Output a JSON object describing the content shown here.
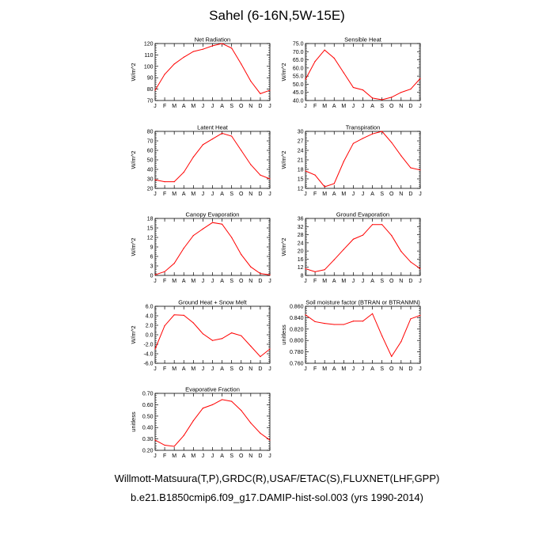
{
  "title": "Sahel (6-16N,5W-15E)",
  "footer": {
    "line1": "Willmott-Matsuura(T,P),GRDC(R),USAF/ETAC(S),FLUXNET(LHF,GPP)",
    "line2": "b.e21.B1850cmip6.f09_g17.DAMIP-hist-sol.003 (yrs 1990-2014)"
  },
  "colors": {
    "line": "#ff0000",
    "axis": "#000000",
    "background": "#ffffff"
  },
  "chart_data": [
    {
      "type": "line",
      "title": "Net Radiation",
      "ylabel": "W/m^2",
      "x": [
        "J",
        "F",
        "M",
        "A",
        "M",
        "J",
        "J",
        "A",
        "S",
        "O",
        "N",
        "D",
        "J"
      ],
      "ylim": [
        70,
        120
      ],
      "yticks": [
        "70",
        "80",
        "90",
        "100",
        "110",
        "120"
      ],
      "series": [
        {
          "values": [
            79,
            93,
            102,
            108,
            113,
            115,
            118,
            120,
            116,
            102,
            87,
            76,
            79
          ]
        }
      ]
    },
    {
      "type": "line",
      "title": "Sensible Heat",
      "ylabel": "W/m^2",
      "x": [
        "J",
        "F",
        "M",
        "A",
        "M",
        "J",
        "J",
        "A",
        "S",
        "O",
        "N",
        "D",
        "J"
      ],
      "ylim": [
        40,
        75
      ],
      "yticks": [
        "40.0",
        "45.0",
        "50.0",
        "55.0",
        "60.0",
        "65.0",
        "70.0",
        "75.0"
      ],
      "series": [
        {
          "values": [
            53,
            64,
            71,
            66,
            57,
            48,
            46.5,
            41.5,
            40.5,
            42,
            45,
            47,
            53.5
          ]
        }
      ]
    },
    {
      "type": "line",
      "title": "Latent Heat",
      "ylabel": "W/m^2",
      "x": [
        "J",
        "F",
        "M",
        "A",
        "M",
        "J",
        "J",
        "A",
        "S",
        "O",
        "N",
        "D",
        "J"
      ],
      "ylim": [
        20,
        80
      ],
      "yticks": [
        "20",
        "30",
        "40",
        "50",
        "60",
        "70",
        "80"
      ],
      "series": [
        {
          "values": [
            29,
            27,
            27,
            37,
            53,
            66,
            72,
            78,
            75,
            60,
            45,
            34,
            30
          ]
        }
      ]
    },
    {
      "type": "line",
      "title": "Transpiration",
      "ylabel": "W/m^2",
      "x": [
        "J",
        "F",
        "M",
        "A",
        "M",
        "J",
        "J",
        "A",
        "S",
        "O",
        "N",
        "D",
        "J"
      ],
      "ylim": [
        12,
        30
      ],
      "yticks": [
        "12",
        "15",
        "18",
        "21",
        "24",
        "27",
        "30"
      ],
      "series": [
        {
          "values": [
            17.5,
            16.2,
            12.5,
            13.5,
            20.5,
            26.2,
            27.8,
            29.2,
            30.0,
            26.5,
            22.3,
            18.5,
            17.8
          ]
        }
      ]
    },
    {
      "type": "line",
      "title": "Canopy Evaporation",
      "ylabel": "W/m^2",
      "x": [
        "J",
        "F",
        "M",
        "A",
        "M",
        "J",
        "J",
        "A",
        "S",
        "O",
        "N",
        "D",
        "J"
      ],
      "ylim": [
        0,
        18
      ],
      "yticks": [
        "0",
        "3",
        "6",
        "9",
        "12",
        "15",
        "18"
      ],
      "series": [
        {
          "values": [
            0.2,
            1.2,
            3.8,
            8.6,
            12.6,
            14.7,
            16.7,
            16.2,
            12.0,
            6.6,
            2.7,
            0.6,
            0.2
          ]
        }
      ]
    },
    {
      "type": "line",
      "title": "Ground Evaporation",
      "ylabel": "W/m^2",
      "x": [
        "J",
        "F",
        "M",
        "A",
        "M",
        "J",
        "J",
        "A",
        "S",
        "O",
        "N",
        "D",
        "J"
      ],
      "ylim": [
        8,
        36
      ],
      "yticks": [
        "8",
        "12",
        "16",
        "20",
        "24",
        "28",
        "32",
        "36"
      ],
      "series": [
        {
          "values": [
            11.3,
            9.8,
            10.8,
            15.7,
            20.8,
            25.8,
            27.8,
            33.0,
            33.0,
            27.6,
            19.8,
            14.6,
            11.3
          ]
        }
      ]
    },
    {
      "type": "line",
      "title": "Ground Heat + Snow Melt",
      "ylabel": "W/m^2",
      "x": [
        "J",
        "F",
        "M",
        "A",
        "M",
        "J",
        "J",
        "A",
        "S",
        "O",
        "N",
        "D",
        "J"
      ],
      "ylim": [
        -6,
        6
      ],
      "yticks": [
        "-6.0",
        "-4.0",
        "-2.0",
        "0.0",
        "2.0",
        "4.0",
        "6.0"
      ],
      "series": [
        {
          "values": [
            -3.0,
            1.9,
            4.2,
            4.1,
            2.5,
            0.2,
            -1.2,
            -0.8,
            0.4,
            -0.2,
            -2.4,
            -4.6,
            -3.0
          ]
        }
      ]
    },
    {
      "type": "line",
      "title": "Soil moisture factor (BTRAN or BTRANMN)",
      "ylabel": "unitless",
      "x": [
        "J",
        "F",
        "M",
        "A",
        "M",
        "J",
        "J",
        "A",
        "S",
        "O",
        "N",
        "D",
        "J"
      ],
      "ylim": [
        0.76,
        0.86
      ],
      "yticks": [
        "0.760",
        "0.780",
        "0.800",
        "0.820",
        "0.840",
        "0.860"
      ],
      "series": [
        {
          "values": [
            0.845,
            0.833,
            0.83,
            0.828,
            0.828,
            0.834,
            0.834,
            0.847,
            0.808,
            0.772,
            0.798,
            0.838,
            0.844
          ]
        }
      ]
    },
    {
      "type": "line",
      "title": "Evaporative Fraction",
      "ylabel": "unitless",
      "x": [
        "J",
        "F",
        "M",
        "A",
        "M",
        "J",
        "J",
        "A",
        "S",
        "O",
        "N",
        "D",
        "J"
      ],
      "ylim": [
        0.2,
        0.7
      ],
      "yticks": [
        "0.20",
        "0.30",
        "0.40",
        "0.50",
        "0.60",
        "0.70"
      ],
      "series": [
        {
          "values": [
            0.29,
            0.245,
            0.235,
            0.33,
            0.46,
            0.57,
            0.6,
            0.645,
            0.63,
            0.55,
            0.44,
            0.35,
            0.29
          ]
        }
      ]
    }
  ]
}
